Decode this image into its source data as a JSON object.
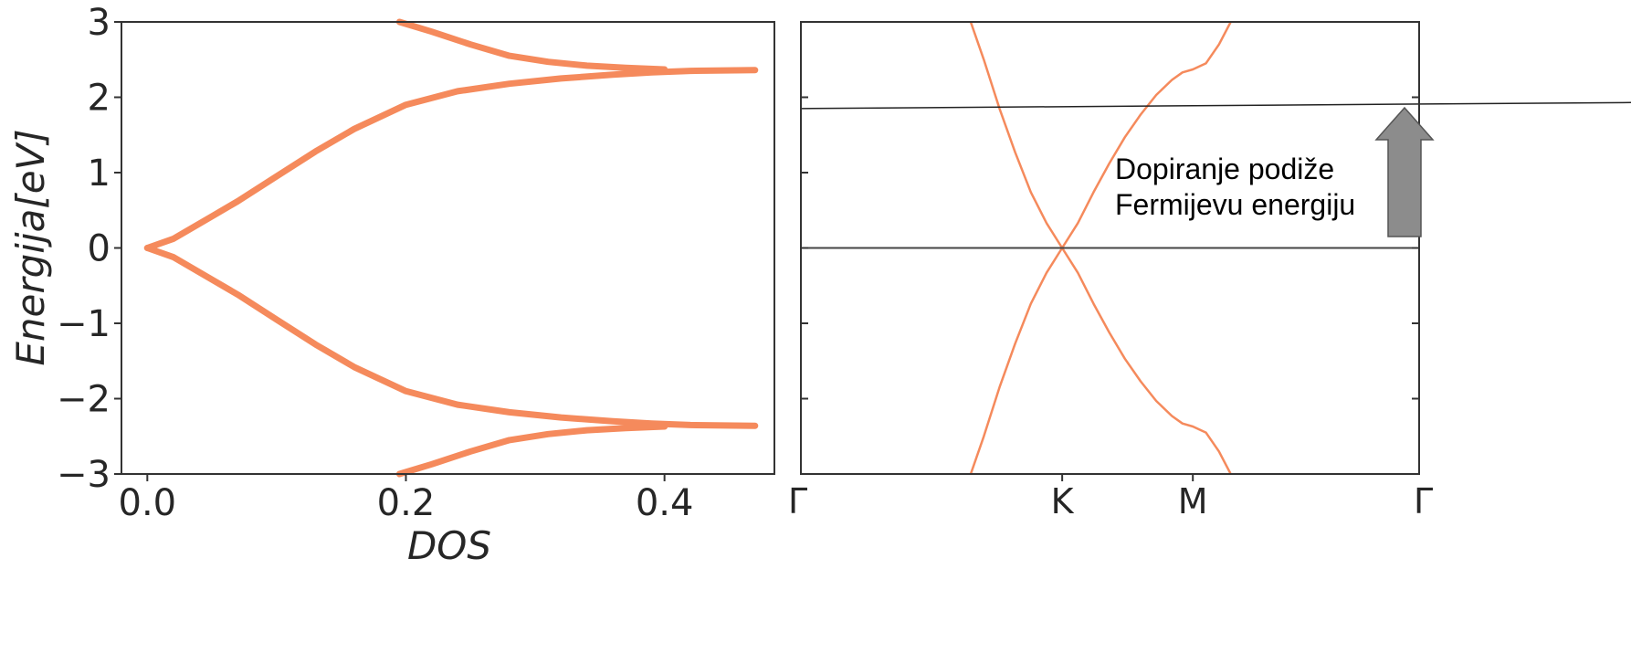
{
  "colors": {
    "curve": "#f58a5c",
    "frame": "#333333",
    "line": "#444444",
    "arrow_fill": "#8c8c8c",
    "arrow_stroke": "#555555"
  },
  "chart_data": [
    {
      "type": "line",
      "title": "",
      "xlabel": "DOS",
      "ylabel_main": "Energija",
      "ylabel_unit": "[eV]",
      "xlim": [
        -0.02,
        0.485
      ],
      "ylim": [
        -3,
        3
      ],
      "xticks": [
        {
          "value": 0.0,
          "label": "0.0"
        },
        {
          "value": 0.2,
          "label": "0.2"
        },
        {
          "value": 0.4,
          "label": "0.4"
        }
      ],
      "yticks": [
        {
          "value": 3,
          "label": "3"
        },
        {
          "value": 2,
          "label": "2"
        },
        {
          "value": 1,
          "label": "1"
        },
        {
          "value": 0,
          "label": "0"
        },
        {
          "value": -1,
          "label": "−1"
        },
        {
          "value": -2,
          "label": "−2"
        },
        {
          "value": -3,
          "label": "−3"
        }
      ],
      "series": [
        {
          "points": [
            [
              0.0,
              0.0
            ],
            [
              0.02,
              0.12
            ],
            [
              0.05,
              0.42
            ],
            [
              0.07,
              0.62
            ],
            [
              0.1,
              0.95
            ],
            [
              0.13,
              1.28
            ],
            [
              0.16,
              1.58
            ],
            [
              0.2,
              1.9
            ],
            [
              0.24,
              2.08
            ],
            [
              0.28,
              2.18
            ],
            [
              0.32,
              2.25
            ],
            [
              0.36,
              2.3
            ],
            [
              0.39,
              2.33
            ],
            [
              0.42,
              2.35
            ],
            [
              0.47,
              2.36
            ]
          ]
        },
        {
          "points": [
            [
              0.0,
              0.0
            ],
            [
              0.02,
              -0.12
            ],
            [
              0.05,
              -0.42
            ],
            [
              0.07,
              -0.62
            ],
            [
              0.1,
              -0.95
            ],
            [
              0.13,
              -1.28
            ],
            [
              0.16,
              -1.58
            ],
            [
              0.2,
              -1.9
            ],
            [
              0.24,
              -2.08
            ],
            [
              0.28,
              -2.18
            ],
            [
              0.32,
              -2.25
            ],
            [
              0.36,
              -2.3
            ],
            [
              0.39,
              -2.33
            ],
            [
              0.42,
              -2.35
            ],
            [
              0.47,
              -2.36
            ]
          ]
        },
        {
          "points": [
            [
              0.195,
              3.0
            ],
            [
              0.22,
              2.87
            ],
            [
              0.25,
              2.7
            ],
            [
              0.28,
              2.55
            ],
            [
              0.31,
              2.47
            ],
            [
              0.34,
              2.42
            ],
            [
              0.37,
              2.39
            ],
            [
              0.4,
              2.37
            ]
          ]
        },
        {
          "points": [
            [
              0.195,
              -3.0
            ],
            [
              0.22,
              -2.87
            ],
            [
              0.25,
              -2.7
            ],
            [
              0.28,
              -2.55
            ],
            [
              0.31,
              -2.47
            ],
            [
              0.34,
              -2.42
            ],
            [
              0.37,
              -2.39
            ],
            [
              0.4,
              -2.37
            ]
          ]
        }
      ]
    },
    {
      "type": "line",
      "title": "",
      "ylim": [
        -3,
        3
      ],
      "yticks": [
        2,
        1,
        0,
        -1,
        -2
      ],
      "kpoints": [
        {
          "value": 0,
          "label": "Γ"
        },
        {
          "value": 1,
          "label": "K"
        },
        {
          "value": 1.5,
          "label": "M"
        },
        {
          "value": 2.366,
          "label": "Γ"
        }
      ],
      "series": [
        {
          "points": [
            [
              0.64,
              3.1
            ],
            [
              0.7,
              2.5
            ],
            [
              0.76,
              1.85
            ],
            [
              0.82,
              1.27
            ],
            [
              0.88,
              0.74
            ],
            [
              0.94,
              0.33
            ],
            [
              1.0,
              0.0
            ],
            [
              1.06,
              0.33
            ],
            [
              1.12,
              0.74
            ],
            [
              1.18,
              1.12
            ],
            [
              1.24,
              1.47
            ],
            [
              1.3,
              1.77
            ],
            [
              1.36,
              2.03
            ],
            [
              1.42,
              2.23
            ],
            [
              1.46,
              2.33
            ],
            [
              1.5,
              2.37
            ],
            [
              1.55,
              2.45
            ],
            [
              1.6,
              2.7
            ],
            [
              1.66,
              3.1
            ]
          ]
        },
        {
          "points": [
            [
              0.64,
              -3.1
            ],
            [
              0.7,
              -2.5
            ],
            [
              0.76,
              -1.85
            ],
            [
              0.82,
              -1.27
            ],
            [
              0.88,
              -0.74
            ],
            [
              0.94,
              -0.33
            ],
            [
              1.0,
              0.0
            ],
            [
              1.06,
              -0.33
            ],
            [
              1.12,
              -0.74
            ],
            [
              1.18,
              -1.12
            ],
            [
              1.24,
              -1.47
            ],
            [
              1.3,
              -1.77
            ],
            [
              1.36,
              -2.03
            ],
            [
              1.42,
              -2.23
            ],
            [
              1.46,
              -2.33
            ],
            [
              1.5,
              -2.37
            ],
            [
              1.55,
              -2.45
            ],
            [
              1.6,
              -2.7
            ],
            [
              1.66,
              -3.1
            ]
          ]
        }
      ],
      "fermi_level": 0,
      "doped_fermi_line": {
        "y_start": 1.85,
        "y_end": 1.93
      },
      "annotation": {
        "line1": "Dopiranje podiže",
        "line2": "Fermijevu energiju"
      }
    }
  ]
}
